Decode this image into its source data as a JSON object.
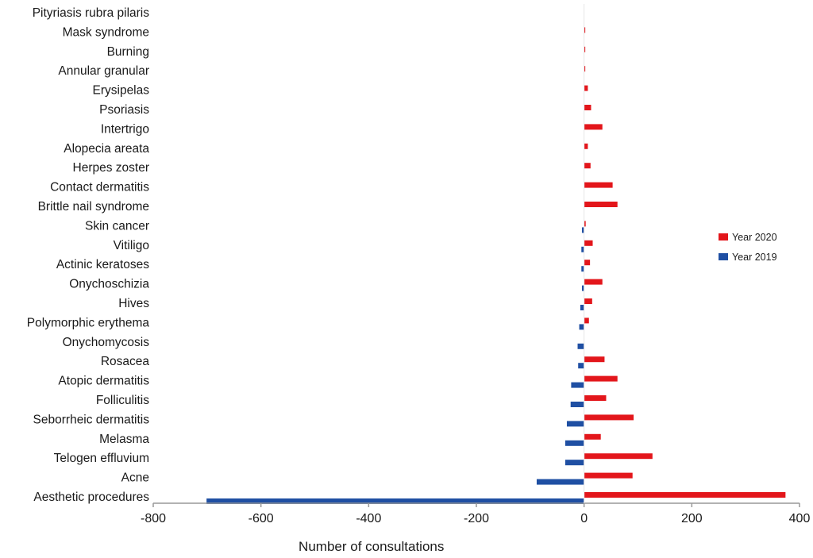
{
  "chart_data": {
    "type": "bar",
    "orientation": "horizontal",
    "title": "",
    "xlabel": "Number of consultations",
    "ylabel": "",
    "xlim": [
      -800,
      400
    ],
    "xticks": [
      -800,
      -600,
      -400,
      -200,
      0,
      200,
      400
    ],
    "grid": false,
    "legend_position": "right",
    "categories": [
      "Pityriasis rubra pilaris",
      "Mask syndrome",
      "Burning",
      "Annular granular",
      "Erysipelas",
      "Psoriasis",
      "Intertrigo",
      "Alopecia areata",
      "Herpes zoster",
      "Contact dermatitis",
      "Brittle nail syndrome",
      "Skin cancer",
      "Vitiligo",
      "Actinic keratoses",
      "Onychoschizia",
      "Hives",
      "Polymorphic erythema",
      "Onychomycosis",
      "Rosacea",
      "Atopic dermatitis",
      "Folliculitis",
      "Seborrheic dermatitis",
      "Melasma",
      "Telogen effluvium",
      "Acne",
      "Aesthetic procedures"
    ],
    "series": [
      {
        "name": "Year 2020",
        "color": "#e3161b",
        "values": [
          0,
          2,
          2,
          2,
          7,
          13,
          34,
          7,
          12,
          53,
          62,
          3,
          16,
          11,
          34,
          15,
          9,
          0,
          38,
          62,
          41,
          92,
          31,
          127,
          90,
          374
        ]
      },
      {
        "name": "Year 2019",
        "color": "#1f4fa3",
        "values": [
          0,
          0,
          0,
          0,
          0,
          0,
          0,
          0,
          0,
          0,
          0,
          -4,
          -5,
          -5,
          -4,
          -7,
          -9,
          -12,
          -11,
          -24,
          -25,
          -32,
          -35,
          -35,
          -88,
          -701
        ]
      }
    ]
  }
}
